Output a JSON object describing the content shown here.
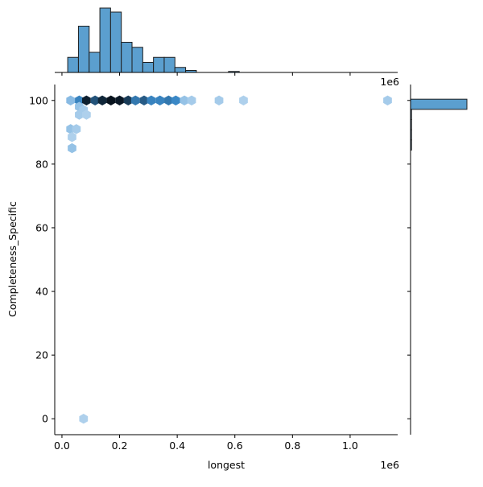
{
  "chart_data": {
    "type": "jointplot-hexbin",
    "xlabel": "longest",
    "ylabel": "Completeness_Specific",
    "x_multiplier": "1e6",
    "xlim": [
      -0.025,
      1.165
    ],
    "ylim": [
      -5,
      105
    ],
    "x_ticks": [
      0.0,
      0.2,
      0.4,
      0.6,
      0.8,
      1.0
    ],
    "x_tick_labels": [
      "0.0",
      "0.2",
      "0.4",
      "0.6",
      "0.8",
      "1.0"
    ],
    "y_ticks": [
      0,
      20,
      40,
      60,
      80,
      100
    ],
    "y_tick_labels": [
      "0",
      "20",
      "40",
      "60",
      "80",
      "100"
    ],
    "hexbin_cells": [
      {
        "x": 0.06,
        "y": 100,
        "count": 30
      },
      {
        "x": 0.085,
        "y": 100,
        "count": 90
      },
      {
        "x": 0.115,
        "y": 100,
        "count": 55
      },
      {
        "x": 0.14,
        "y": 100,
        "count": 85
      },
      {
        "x": 0.17,
        "y": 100,
        "count": 100
      },
      {
        "x": 0.2,
        "y": 100,
        "count": 95
      },
      {
        "x": 0.23,
        "y": 100,
        "count": 70
      },
      {
        "x": 0.255,
        "y": 100,
        "count": 35
      },
      {
        "x": 0.285,
        "y": 100,
        "count": 50
      },
      {
        "x": 0.31,
        "y": 100,
        "count": 30
      },
      {
        "x": 0.34,
        "y": 100,
        "count": 30
      },
      {
        "x": 0.37,
        "y": 100,
        "count": 35
      },
      {
        "x": 0.395,
        "y": 100,
        "count": 28
      },
      {
        "x": 0.425,
        "y": 100,
        "count": 6
      },
      {
        "x": 0.45,
        "y": 100,
        "count": 4
      },
      {
        "x": 0.545,
        "y": 100,
        "count": 4
      },
      {
        "x": 0.63,
        "y": 100,
        "count": 3
      },
      {
        "x": 1.13,
        "y": 100,
        "count": 4
      },
      {
        "x": 0.03,
        "y": 100,
        "count": 8
      },
      {
        "x": 0.06,
        "y": 98,
        "count": 6
      },
      {
        "x": 0.075,
        "y": 97,
        "count": 4
      },
      {
        "x": 0.06,
        "y": 95.5,
        "count": 4
      },
      {
        "x": 0.085,
        "y": 95.5,
        "count": 3
      },
      {
        "x": 0.03,
        "y": 91,
        "count": 6
      },
      {
        "x": 0.05,
        "y": 91,
        "count": 4
      },
      {
        "x": 0.035,
        "y": 88.5,
        "count": 3
      },
      {
        "x": 0.035,
        "y": 85,
        "count": 6
      },
      {
        "x": 0.075,
        "y": 0,
        "count": 3
      }
    ],
    "x_histogram": {
      "bin_start": 0.02,
      "bin_width": 0.0372,
      "counts": [
        15,
        46,
        20,
        64,
        60,
        30,
        25,
        10,
        15,
        15,
        5,
        2,
        0,
        0,
        0,
        1,
        0,
        0,
        0,
        0,
        0,
        0,
        0,
        0,
        0,
        0,
        0,
        0,
        0,
        0,
        0,
        0
      ]
    },
    "y_histogram": {
      "bins": [
        {
          "y0": 97.2,
          "y1": 100.4,
          "count": 320
        },
        {
          "y0": 94.0,
          "y1": 97.2,
          "count": 5
        },
        {
          "y0": 90.8,
          "y1": 94.0,
          "count": 4
        },
        {
          "y0": 87.6,
          "y1": 90.8,
          "count": 2
        },
        {
          "y0": 84.4,
          "y1": 87.6,
          "count": 3
        }
      ]
    },
    "colors": {
      "hist_fill": "#5b9fcf",
      "hist_edge": "#1f1f1f",
      "hex_low": "#eaf3fb",
      "hex_mid": "#3d8fd0",
      "hex_high": "#07121d"
    }
  }
}
